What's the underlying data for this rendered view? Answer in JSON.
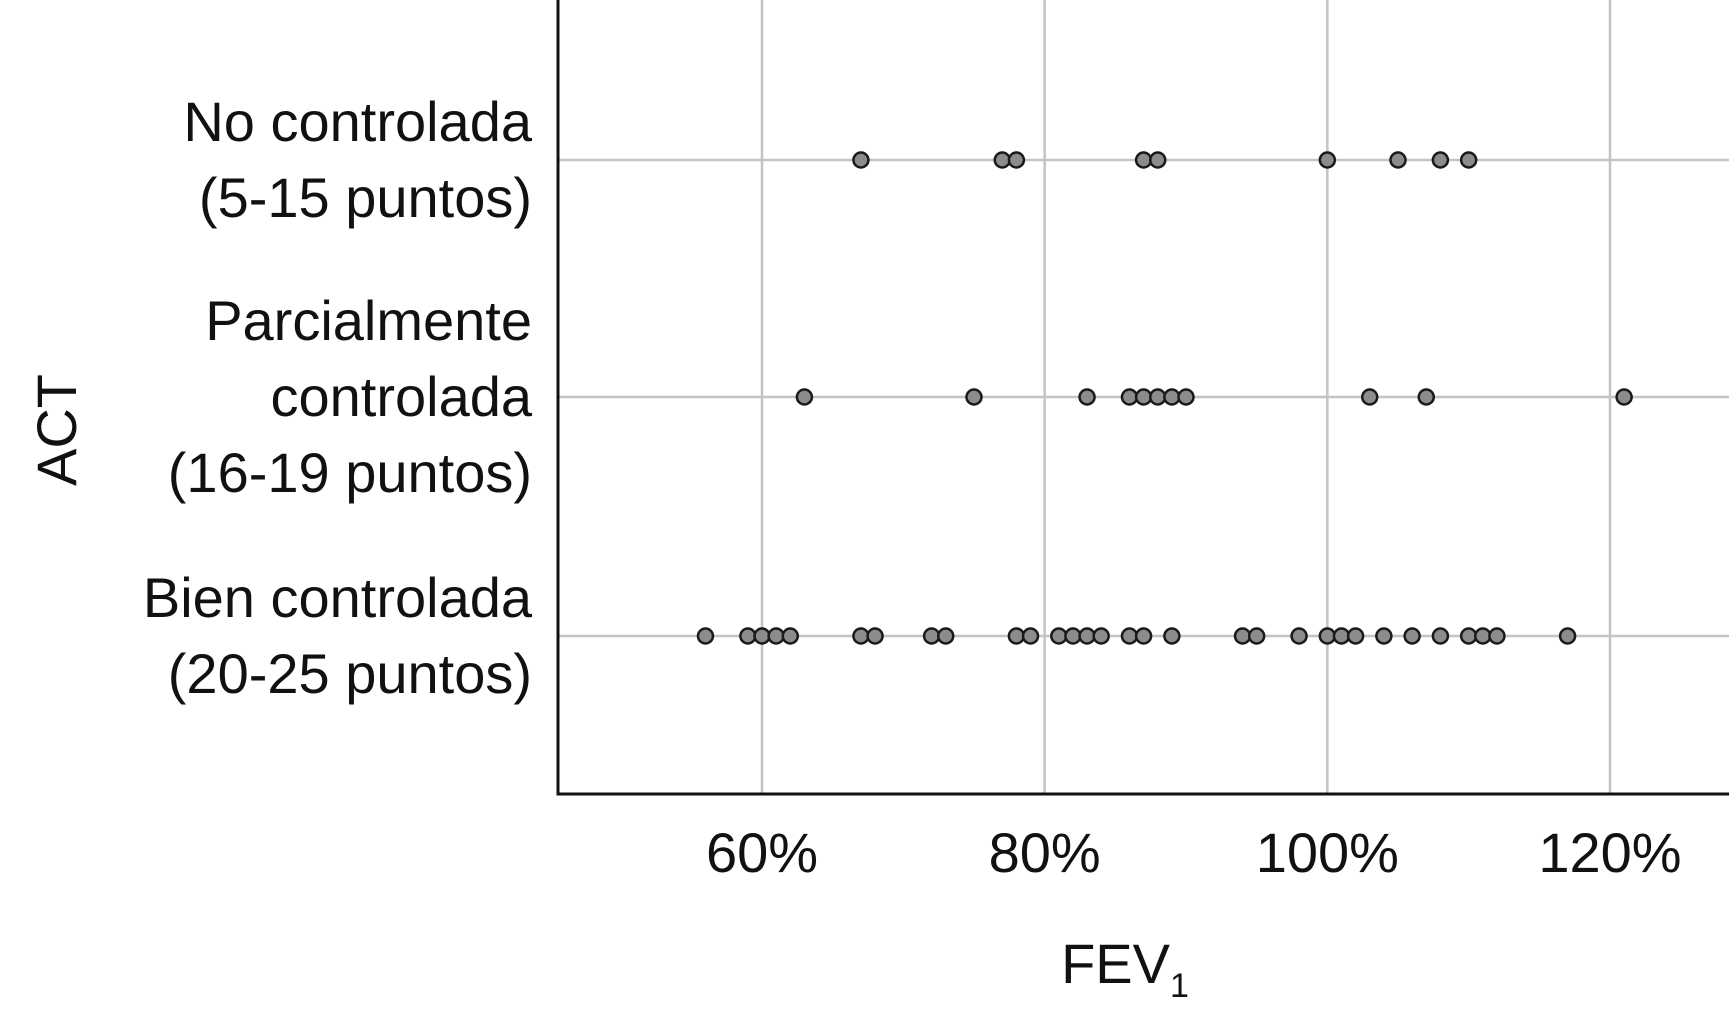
{
  "chart_data": {
    "type": "scatter",
    "title": "",
    "xlabel": "FEV",
    "xlabel_subscript": "1",
    "ylabel": "ACT",
    "xlim": [
      45,
      128
    ],
    "x_ticks": [
      60,
      80,
      100,
      120
    ],
    "x_tick_labels": [
      "60%",
      "80%",
      "100%",
      "120%"
    ],
    "grid": true,
    "categories": [
      [
        "No controlada",
        "(5-15 puntos)"
      ],
      [
        "Parcialmente",
        "controlada",
        "(16-19 puntos)"
      ],
      [
        "Bien controlada",
        "(20-25 puntos)"
      ]
    ],
    "series": [
      {
        "category_index": 0,
        "x": [
          67,
          77,
          78,
          87,
          88,
          100,
          105,
          108,
          110
        ]
      },
      {
        "category_index": 1,
        "x": [
          63,
          75,
          83,
          86,
          87,
          88,
          89,
          90,
          103,
          107,
          121
        ]
      },
      {
        "category_index": 2,
        "x": [
          56,
          59,
          60,
          61,
          62,
          67,
          68,
          72,
          73,
          78,
          79,
          81,
          82,
          83,
          84,
          86,
          87,
          89,
          94,
          95,
          98,
          100,
          101,
          102,
          104,
          106,
          108,
          110,
          111,
          112,
          117
        ]
      }
    ],
    "colors": {
      "point_fill": "#8c8c8c",
      "point_stroke": "#1a1a1a",
      "grid": "#c4c4c4",
      "axis": "#111111"
    }
  }
}
